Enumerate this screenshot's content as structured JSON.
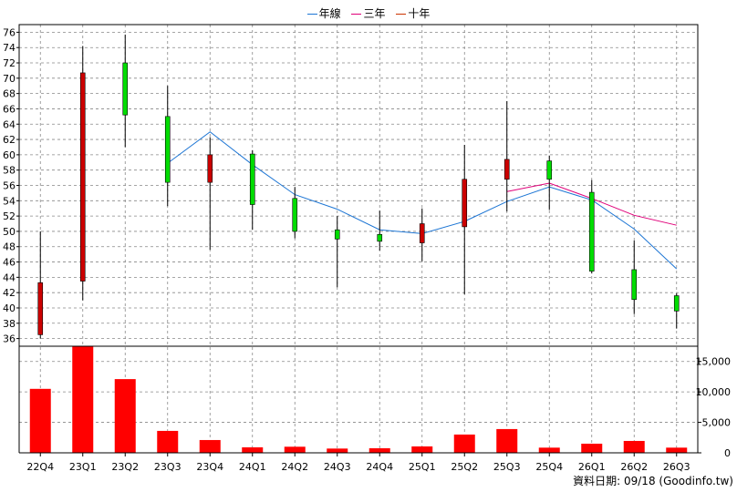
{
  "legend": {
    "annual_label": "年線",
    "three_year_label": "三年",
    "ten_year_label": "十年"
  },
  "source_text": "資料日期: 09/18 (Goodinfo.tw)",
  "colors": {
    "up_candle": "#00dd00",
    "down_candle": "#cc0000",
    "wick": "#000000",
    "annual_line": "#1c75d4",
    "three_year_line": "#e0007a",
    "ten_year_line": "#cc3300",
    "volume_bar": "#ff0000",
    "grid": "#888888"
  },
  "chart_data": {
    "type": "candlestick",
    "categories": [
      "22Q4",
      "23Q1",
      "23Q2",
      "23Q3",
      "23Q4",
      "24Q1",
      "24Q2",
      "24Q3",
      "24Q4",
      "25Q1",
      "25Q2",
      "25Q3",
      "25Q4",
      "26Q1",
      "26Q2",
      "26Q3"
    ],
    "price_axis": {
      "ylim": [
        35,
        77
      ],
      "ticks": [
        36,
        38,
        40,
        42,
        44,
        46,
        48,
        50,
        52,
        54,
        56,
        58,
        60,
        62,
        64,
        66,
        68,
        70,
        72,
        74,
        76
      ]
    },
    "volume_axis": {
      "ylim": [
        0,
        17500
      ],
      "ticks": [
        0,
        5000,
        10000,
        15000
      ],
      "tick_labels": [
        "0",
        "5,000",
        "10,000",
        "15,000"
      ]
    },
    "candles": [
      {
        "open": 43.3,
        "close": 36.5,
        "high": 50.0,
        "low": 36.0
      },
      {
        "open": 70.7,
        "close": 43.5,
        "high": 74.2,
        "low": 41.0
      },
      {
        "open": 65.2,
        "close": 72.0,
        "high": 75.7,
        "low": 61.0
      },
      {
        "open": 56.4,
        "close": 65.0,
        "high": 69.0,
        "low": 53.3
      },
      {
        "open": 60.0,
        "close": 56.4,
        "high": 62.3,
        "low": 47.6
      },
      {
        "open": 53.5,
        "close": 60.1,
        "high": 60.6,
        "low": 50.2
      },
      {
        "open": 50.0,
        "close": 54.3,
        "high": 55.8,
        "low": 49.1
      },
      {
        "open": 49.0,
        "close": 50.2,
        "high": 52.0,
        "low": 42.7
      },
      {
        "open": 48.7,
        "close": 49.6,
        "high": 52.7,
        "low": 47.5
      },
      {
        "open": 51.0,
        "close": 48.5,
        "high": 53.0,
        "low": 46.1
      },
      {
        "open": 56.8,
        "close": 50.6,
        "high": 61.3,
        "low": 41.8
      },
      {
        "open": 59.4,
        "close": 56.8,
        "high": 67.0,
        "low": 52.6
      },
      {
        "open": 56.8,
        "close": 59.2,
        "high": 59.9,
        "low": 52.8
      },
      {
        "open": 44.8,
        "close": 55.1,
        "high": 56.7,
        "low": 44.5
      },
      {
        "open": 41.1,
        "close": 45.0,
        "high": 48.8,
        "low": 39.2
      },
      {
        "open": 39.6,
        "close": 41.6,
        "high": 41.9,
        "low": 37.3
      }
    ],
    "series": [
      {
        "name": "年線",
        "values": [
          null,
          null,
          null,
          58.9,
          63.0,
          58.7,
          54.8,
          52.9,
          50.2,
          49.7,
          51.3,
          53.9,
          55.8,
          54.1,
          50.3,
          45.1
        ]
      },
      {
        "name": "三年",
        "values": [
          null,
          null,
          null,
          null,
          null,
          null,
          null,
          null,
          null,
          null,
          null,
          55.2,
          56.3,
          54.3,
          52.1,
          50.8
        ]
      },
      {
        "name": "十年",
        "values": [
          null,
          null,
          null,
          null,
          null,
          null,
          null,
          null,
          null,
          null,
          null,
          null,
          null,
          null,
          null,
          null
        ]
      }
    ],
    "volume": [
      10500,
      17500,
      12100,
      3600,
      2100,
      900,
      1000,
      700,
      750,
      1050,
      3000,
      3900,
      850,
      1500,
      1950,
      850
    ],
    "grid": true,
    "legend_position": "top-center"
  }
}
